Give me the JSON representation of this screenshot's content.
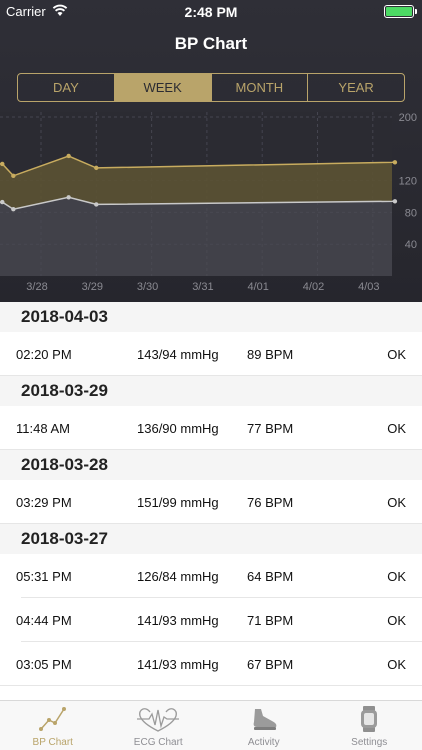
{
  "status_bar": {
    "carrier": "Carrier",
    "time": "2:48 PM"
  },
  "nav": {
    "title": "BP Chart"
  },
  "segments": [
    {
      "label": "DAY"
    },
    {
      "label": "WEEK",
      "selected": true
    },
    {
      "label": "MONTH"
    },
    {
      "label": "YEAR"
    }
  ],
  "chart_data": {
    "type": "area",
    "x_ticks": [
      "3/28",
      "3/29",
      "3/30",
      "3/31",
      "4/01",
      "4/02",
      "4/03"
    ],
    "y_ticks": [
      200,
      120,
      80,
      40
    ],
    "ylim": [
      0,
      200
    ],
    "x": [
      -0.7,
      -0.5,
      0.5,
      1.0,
      6.4
    ],
    "series": [
      {
        "values": [
          141,
          126,
          151,
          136,
          143
        ],
        "color": "#c8ac5f"
      },
      {
        "values": [
          93,
          84,
          99,
          90,
          94
        ],
        "color": "#c9c9c9"
      }
    ],
    "grid": true
  },
  "list": {
    "sections": [
      {
        "date": "2018-04-03",
        "rows": [
          {
            "time": "02:20 PM",
            "bp": "143/94 mmHg",
            "hr": "89 BPM",
            "status": "OK"
          }
        ]
      },
      {
        "date": "2018-03-29",
        "rows": [
          {
            "time": "11:48 AM",
            "bp": "136/90 mmHg",
            "hr": "77 BPM",
            "status": "OK"
          }
        ]
      },
      {
        "date": "2018-03-28",
        "rows": [
          {
            "time": "03:29 PM",
            "bp": "151/99 mmHg",
            "hr": "76 BPM",
            "status": "OK"
          }
        ]
      },
      {
        "date": "2018-03-27",
        "rows": [
          {
            "time": "05:31 PM",
            "bp": "126/84 mmHg",
            "hr": "64 BPM",
            "status": "OK"
          },
          {
            "time": "04:44 PM",
            "bp": "141/93 mmHg",
            "hr": "71 BPM",
            "status": "OK"
          },
          {
            "time": "03:05 PM",
            "bp": "141/93 mmHg",
            "hr": "67 BPM",
            "status": "OK"
          }
        ]
      }
    ]
  },
  "tabs": [
    {
      "label": "BP Chart",
      "icon": "bp-chart-icon",
      "active": true
    },
    {
      "label": "ECG Chart",
      "icon": "heartbeat-icon"
    },
    {
      "label": "Activity",
      "icon": "shoe-icon"
    },
    {
      "label": "Settings",
      "icon": "watch-icon"
    }
  ],
  "colors": {
    "accent": "#b9a46a",
    "header_bg": "#2b2b32"
  }
}
